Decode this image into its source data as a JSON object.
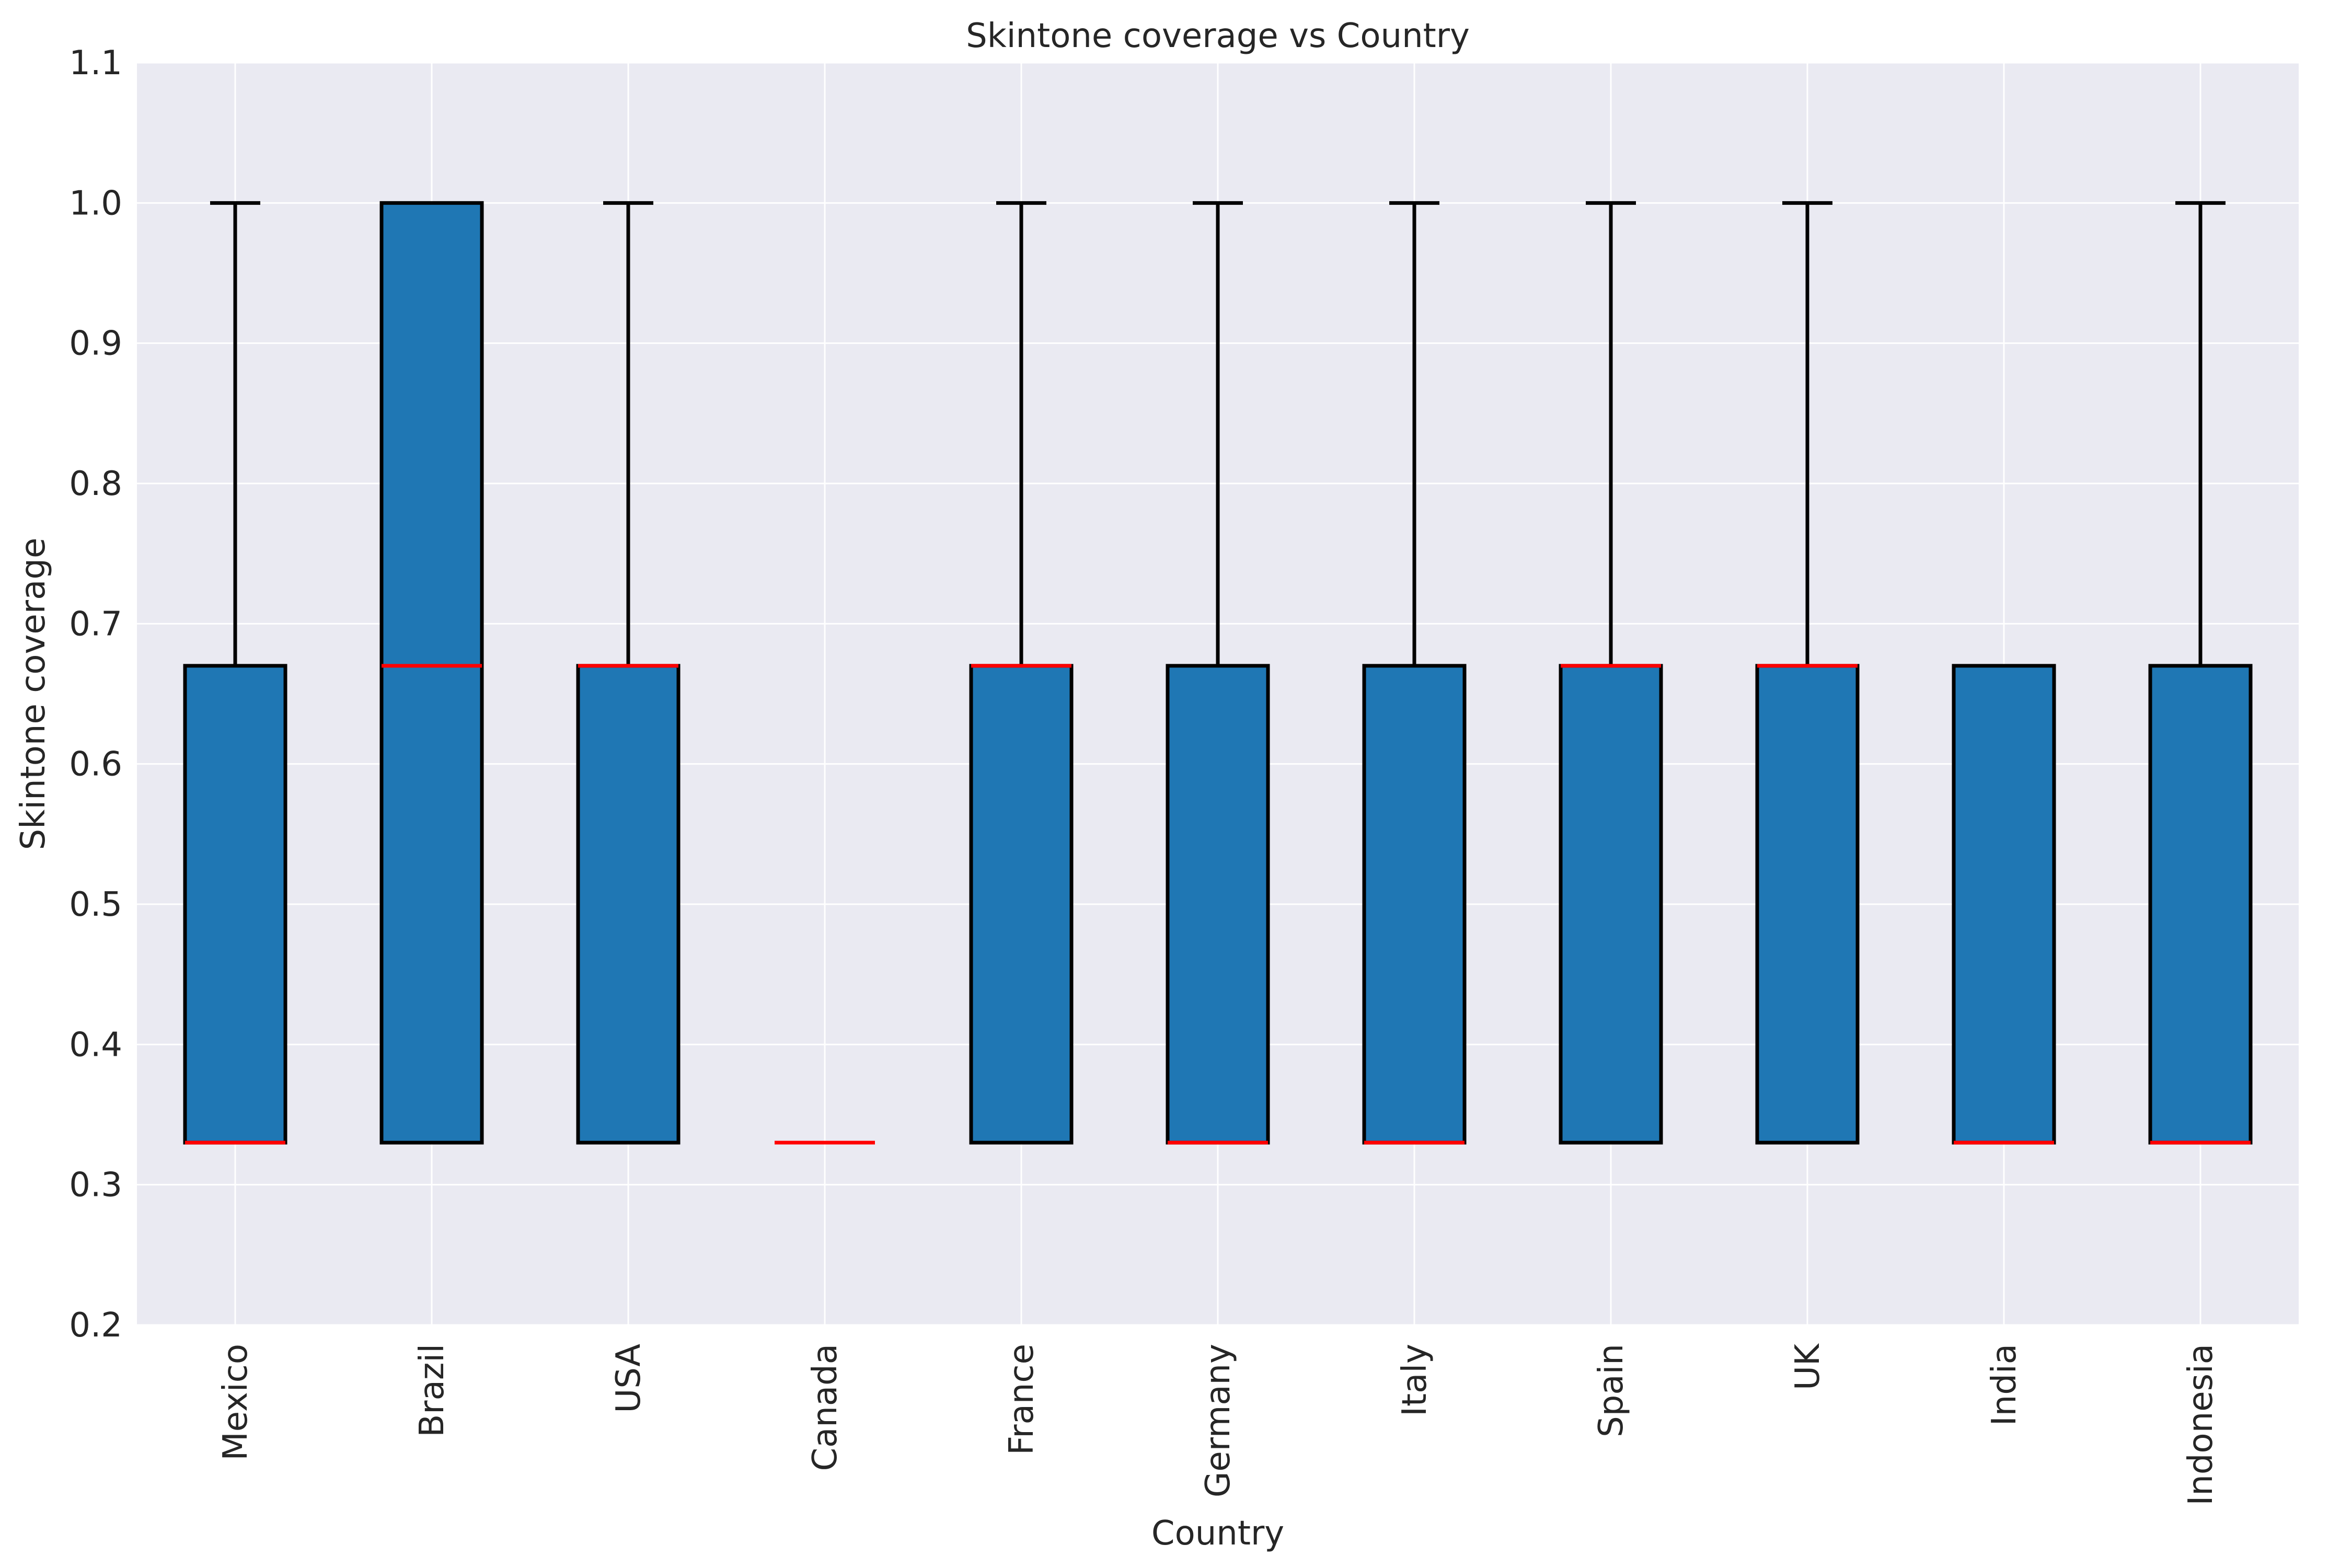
{
  "chart_data": {
    "type": "boxplot",
    "title": "Skintone coverage vs Country",
    "xlabel": "Country",
    "ylabel": "Skintone coverage",
    "ylim": [
      0.2,
      1.1
    ],
    "yticks": [
      "0.2",
      "0.3",
      "0.4",
      "0.5",
      "0.6",
      "0.7",
      "0.8",
      "0.9",
      "1.0",
      "1.1"
    ],
    "grid": true,
    "colors": {
      "box_fill": "#1f77b4",
      "median": "#ff0000",
      "whisker": "#000000",
      "background": "#eaeaf2"
    },
    "categories": [
      "Mexico",
      "Brazil",
      "USA",
      "Canada",
      "France",
      "Germany",
      "Italy",
      "Spain",
      "UK",
      "India",
      "Indonesia"
    ],
    "boxes": [
      {
        "category": "Mexico",
        "whislo": 0.33,
        "q1": 0.33,
        "med": 0.33,
        "q3": 0.67,
        "whishi": 1.0
      },
      {
        "category": "Brazil",
        "whislo": 0.33,
        "q1": 0.33,
        "med": 0.67,
        "q3": 1.0,
        "whishi": 1.0
      },
      {
        "category": "USA",
        "whislo": 0.33,
        "q1": 0.33,
        "med": 0.67,
        "q3": 0.67,
        "whishi": 1.0
      },
      {
        "category": "Canada",
        "whislo": 0.33,
        "q1": 0.33,
        "med": 0.33,
        "q3": 0.33,
        "whishi": 0.33
      },
      {
        "category": "France",
        "whislo": 0.33,
        "q1": 0.33,
        "med": 0.67,
        "q3": 0.67,
        "whishi": 1.0
      },
      {
        "category": "Germany",
        "whislo": 0.33,
        "q1": 0.33,
        "med": 0.33,
        "q3": 0.67,
        "whishi": 1.0
      },
      {
        "category": "Italy",
        "whislo": 0.33,
        "q1": 0.33,
        "med": 0.33,
        "q3": 0.67,
        "whishi": 1.0
      },
      {
        "category": "Spain",
        "whislo": 0.33,
        "q1": 0.33,
        "med": 0.67,
        "q3": 0.67,
        "whishi": 1.0
      },
      {
        "category": "UK",
        "whislo": 0.33,
        "q1": 0.33,
        "med": 0.67,
        "q3": 0.67,
        "whishi": 1.0
      },
      {
        "category": "India",
        "whislo": 0.33,
        "q1": 0.33,
        "med": 0.33,
        "q3": 0.67,
        "whishi": 0.67
      },
      {
        "category": "Indonesia",
        "whislo": 0.33,
        "q1": 0.33,
        "med": 0.33,
        "q3": 0.67,
        "whishi": 1.0
      }
    ]
  }
}
